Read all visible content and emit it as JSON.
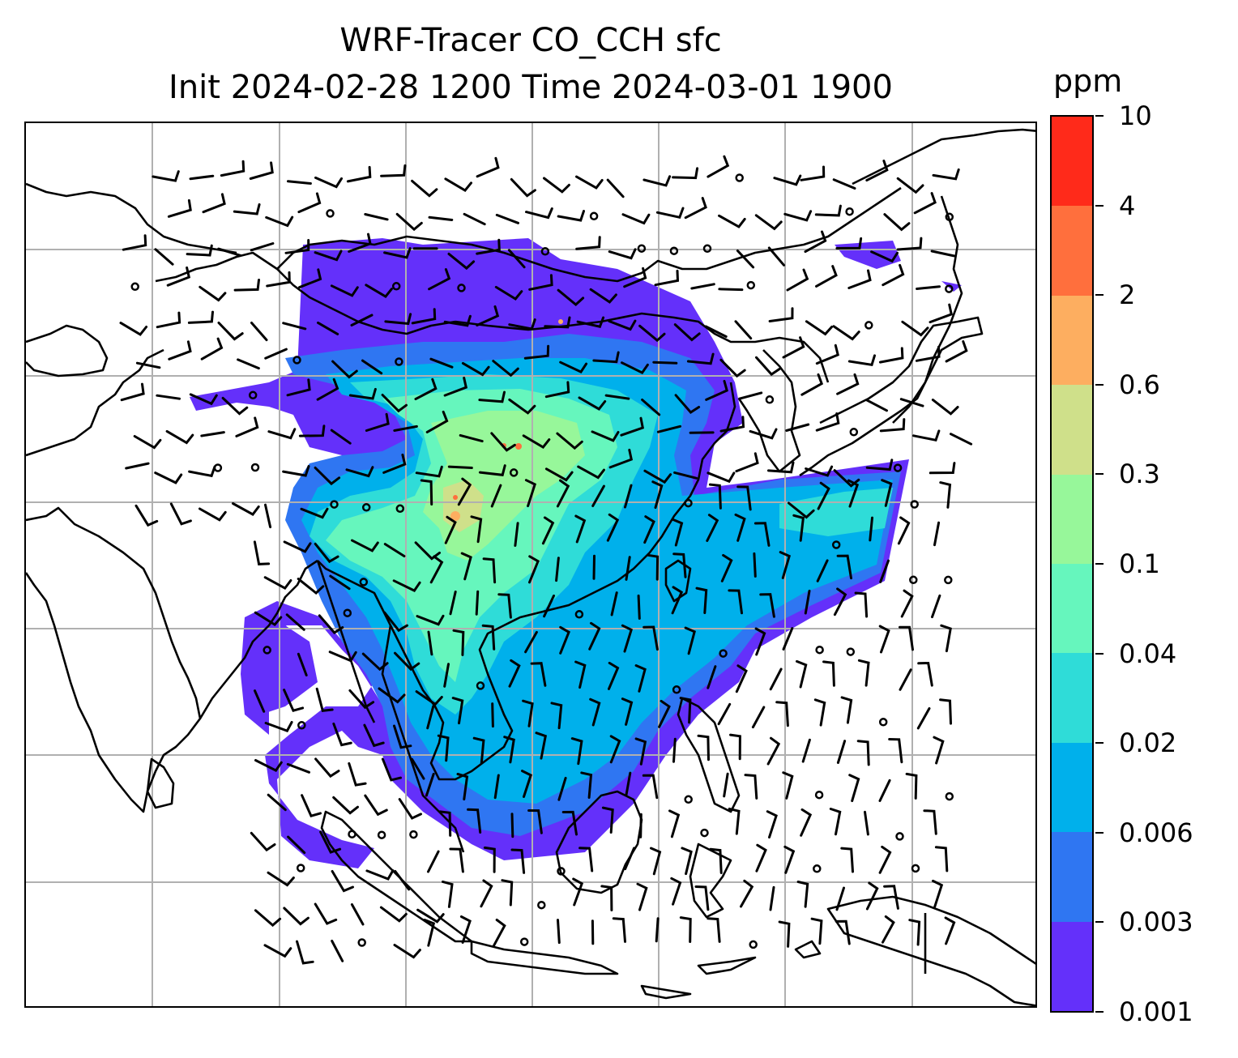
{
  "title": {
    "line1": "WRF-Tracer CO_CCH sfc",
    "line2": "Init 2024-02-28 1200 Time 2024-03-01 1900"
  },
  "colorbar": {
    "unit": "ppm",
    "labels": [
      "10",
      "4",
      "2",
      "0.6",
      "0.3",
      "0.1",
      "0.04",
      "0.02",
      "0.006",
      "0.003",
      "0.001"
    ],
    "colors": [
      "#ff2a1a",
      "#ff6f3d",
      "#fdae60",
      "#cfe08a",
      "#97f79a",
      "#66f6bd",
      "#2fdcd8",
      "#00b0eb",
      "#2f76f2",
      "#6430fa"
    ]
  },
  "map": {
    "gridlines": true,
    "grid_color": "#b0b0b0",
    "coastline_color": "#000000"
  },
  "chart_data": {
    "type": "heatmap",
    "title": "WRF-Tracer CO_CCH sfc\nInit 2024-02-28 1200 Time 2024-03-01 1900",
    "colorbar_label": "ppm",
    "levels": [
      0.001,
      0.003,
      0.006,
      0.02,
      0.04,
      0.1,
      0.3,
      0.6,
      2,
      4,
      10
    ],
    "overlay": "wind barbs"
  }
}
